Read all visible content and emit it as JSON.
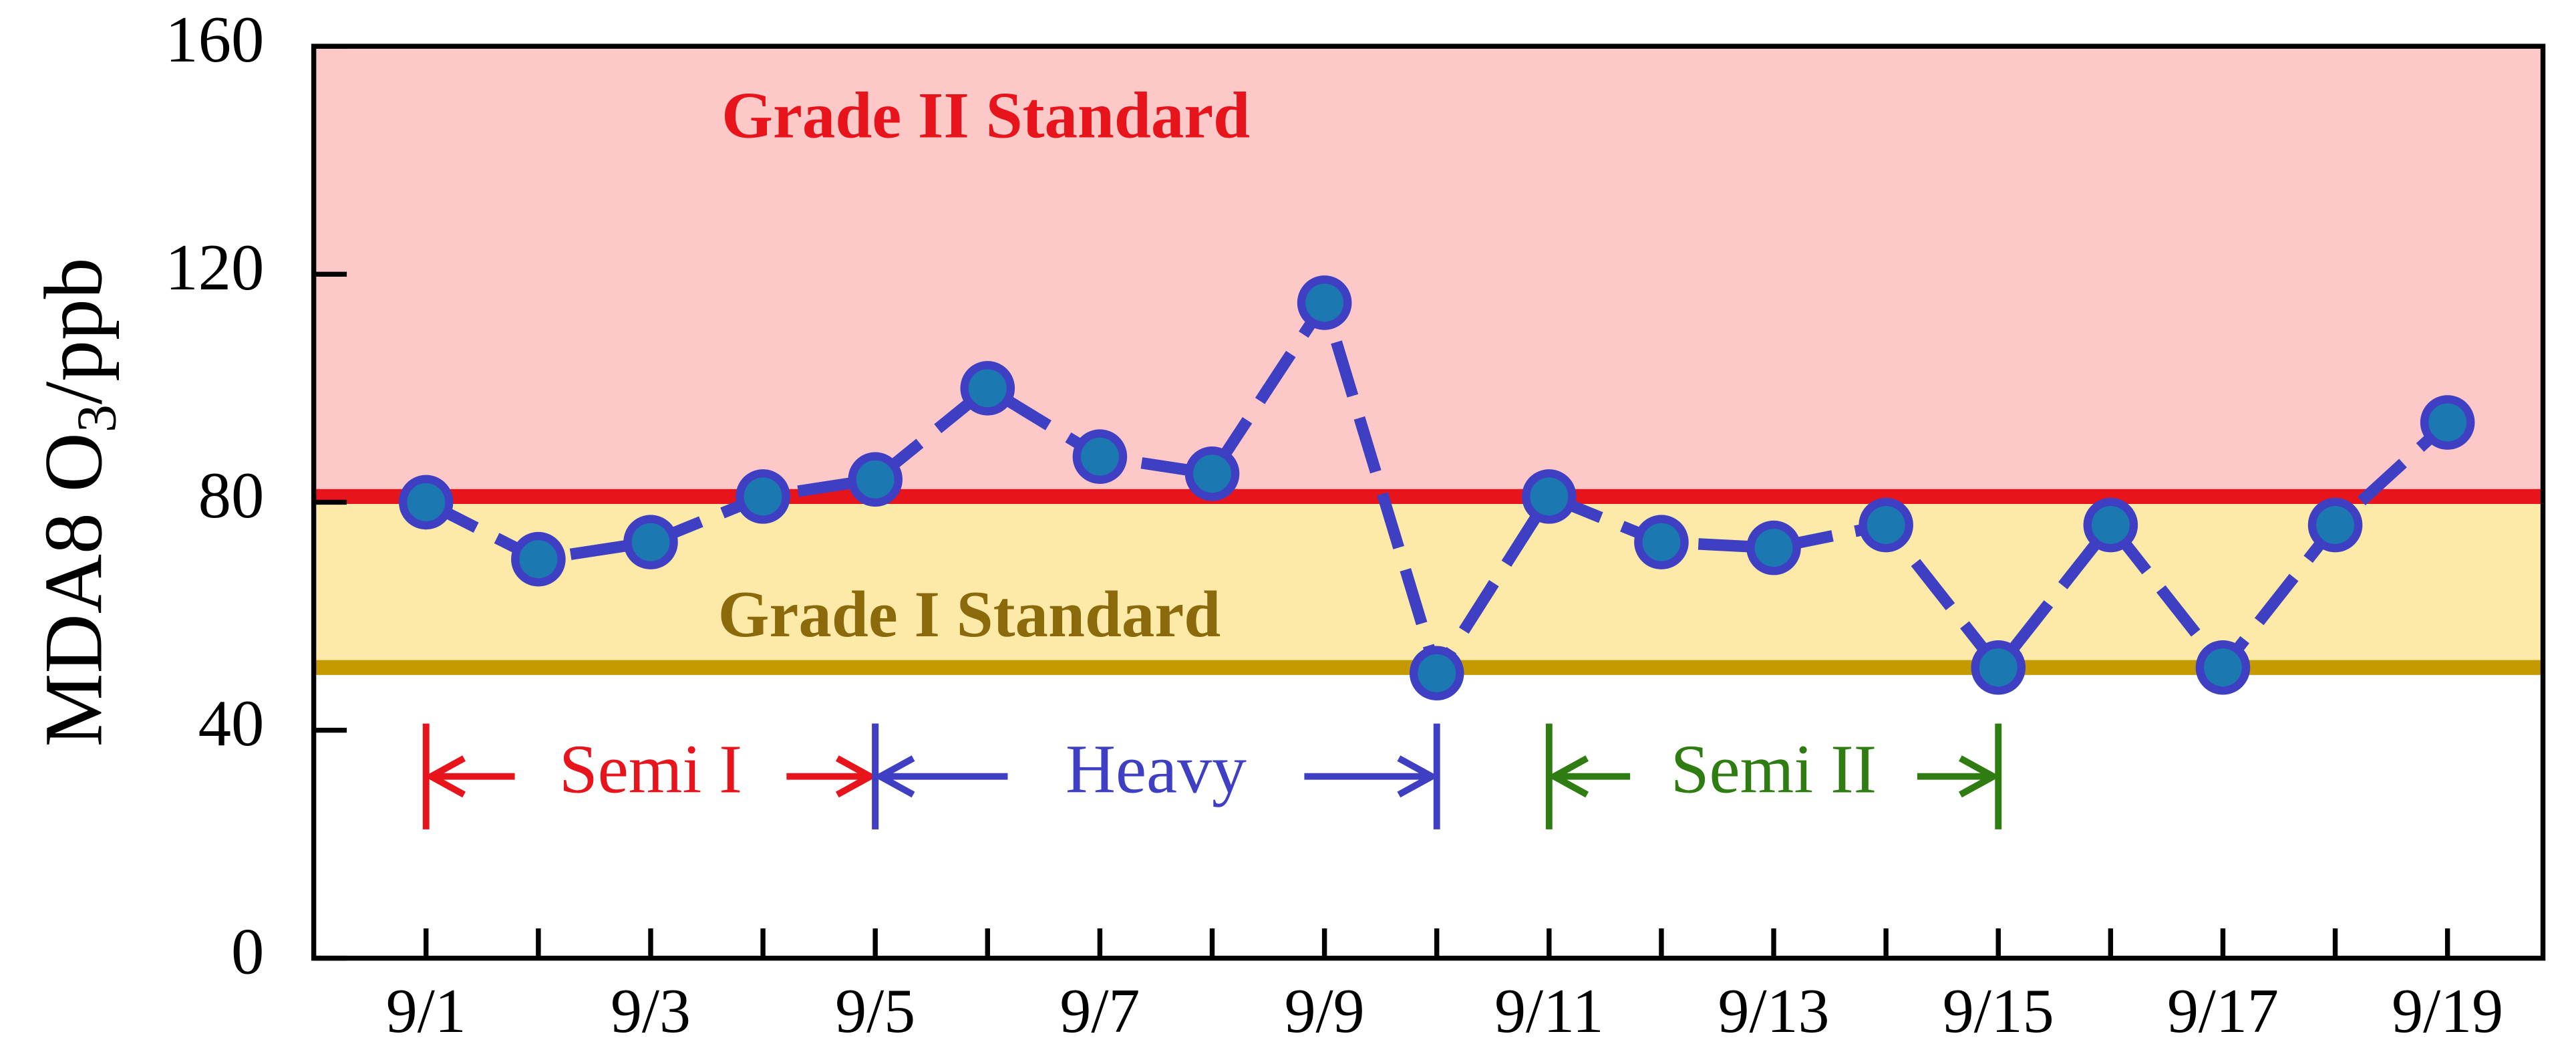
{
  "chart_data": {
    "type": "line",
    "ylabel": [
      "MDA8 O",
      "3",
      "/ppb"
    ],
    "x": [
      1,
      2,
      3,
      4,
      5,
      6,
      7,
      8,
      9,
      10,
      11,
      12,
      13,
      14,
      15,
      16,
      17,
      18,
      19
    ],
    "xlim": [
      0,
      19.85
    ],
    "xticks": [
      {
        "value": 1,
        "label": "9/1"
      },
      {
        "value": 3,
        "label": "9/3"
      },
      {
        "value": 5,
        "label": "9/5"
      },
      {
        "value": 7,
        "label": "9/7"
      },
      {
        "value": 9,
        "label": "9/9"
      },
      {
        "value": 11,
        "label": "9/11"
      },
      {
        "value": 13,
        "label": "9/13"
      },
      {
        "value": 15,
        "label": "9/15"
      },
      {
        "value": 17,
        "label": "9/17"
      },
      {
        "value": 19,
        "label": "9/19"
      }
    ],
    "series": [
      {
        "color": "#3f3fc4",
        "marker_color": "#1b78b0",
        "values": [
          80,
          70,
          73,
          81,
          84,
          100,
          88,
          85,
          115,
          50,
          81,
          73,
          72,
          76,
          51,
          76,
          51,
          76,
          94
        ]
      }
    ],
    "ylim": [
      0,
      160
    ],
    "yticks": [
      0,
      40,
      80,
      120,
      160
    ],
    "standards": [
      {
        "name": "Grade I Standard",
        "value": 51,
        "color": "#c49a00",
        "text_color": "#8a6a0a",
        "fill": "#fdeaa8"
      },
      {
        "name": "Grade II Standard",
        "value": 81,
        "color": "#e8141b",
        "text_color": "#e8141b",
        "fill": "#fdc8c8"
      }
    ],
    "periods": [
      {
        "name": "Semi I",
        "start": 1,
        "end": 5,
        "color": "#e8141b"
      },
      {
        "name": "Heavy",
        "start": 5,
        "end": 10,
        "color": "#3f3fc4"
      },
      {
        "name": "Semi II",
        "start": 11,
        "end": 15,
        "color": "#2f7d12"
      }
    ]
  }
}
